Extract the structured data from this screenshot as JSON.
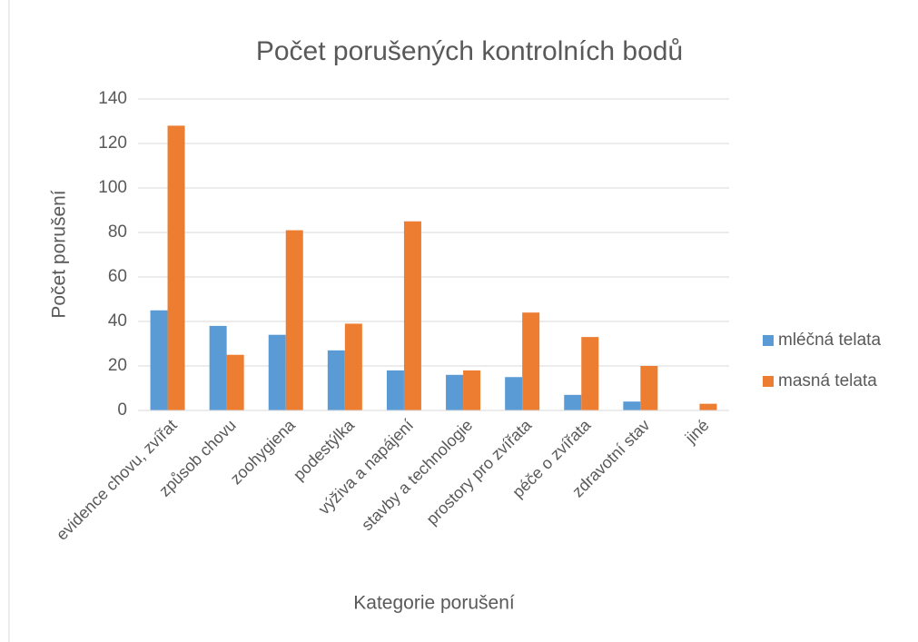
{
  "chart_data": {
    "type": "bar",
    "title": "Počet porušených kontrolních bodů",
    "x_label": "Kategorie porušení",
    "y_label": "Počet porušení",
    "categories": [
      "evidence chovu, zvířat",
      "způsob chovu",
      "zoohygiena",
      "podestýlka",
      "výživa a napájení",
      "stavby a technologie",
      "prostory pro zvířata",
      "péče o zvířata",
      "zdravotní stav",
      "jiné"
    ],
    "series": [
      {
        "name": "mléčná telata",
        "color": "#5b9bd5",
        "values": [
          45,
          38,
          34,
          27,
          18,
          16,
          15,
          7,
          4,
          0
        ]
      },
      {
        "name": "masná telata",
        "color": "#ed7d31",
        "values": [
          128,
          25,
          81,
          39,
          85,
          18,
          44,
          33,
          20,
          3
        ]
      }
    ],
    "ylim": [
      0,
      140
    ],
    "yticks": [
      0,
      20,
      40,
      60,
      80,
      100,
      120,
      140
    ],
    "grid": true,
    "legend": "right"
  }
}
